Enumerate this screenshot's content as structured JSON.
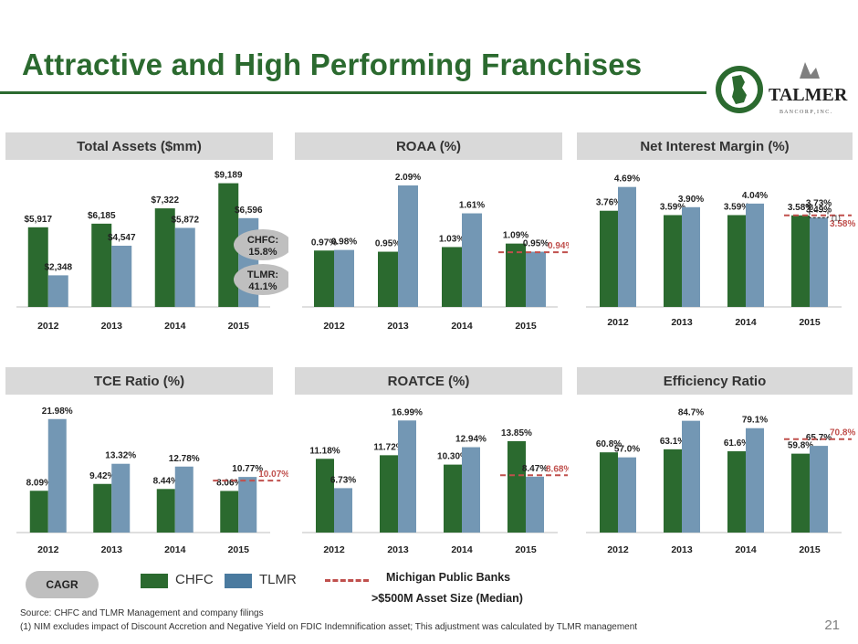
{
  "page": {
    "title": "Attractive and High Performing Franchises",
    "page_number": "21",
    "source": "Source: CHFC and TLMR Management and company filings",
    "footnote": "(1) NIM excludes impact of Discount Accretion and Negative Yield on FDIC Indemnification asset; This adjustment was calculated by TLMR management",
    "logo": {
      "name": "TALMER",
      "tagline": "B A N C O R P ,  I N C ."
    }
  },
  "colors": {
    "chfc": "#2b6a2f",
    "tlmr": "#7397b4",
    "median": "#c0504d",
    "header_bg": "#d9d9d9",
    "title": "#2b6a2f"
  },
  "legend": {
    "cagr": "CAGR",
    "chfc": "CHFC",
    "tlmr": "TLMR",
    "median_line1": "Michigan Public Banks",
    "median_line2": ">$500M Asset Size (Median)"
  },
  "chart_data": [
    {
      "type": "bar",
      "title": "Total Assets ($mm)",
      "categories": [
        "2012",
        "2013",
        "2014",
        "2015"
      ],
      "series": [
        {
          "name": "CHFC",
          "values": [
            5917,
            6185,
            7322,
            9189
          ],
          "labels": [
            "$5,917",
            "$6,185",
            "$7,322",
            "$9,189"
          ]
        },
        {
          "name": "TLMR",
          "values": [
            2348,
            4547,
            5872,
            6596
          ],
          "labels": [
            "$2,348",
            "$4,547",
            "$5,872",
            "$6,596"
          ]
        }
      ],
      "ylim": [
        0,
        9500
      ],
      "cagr_bubbles": [
        "CHFC:\n15.8%",
        "TLMR:\n41.1%"
      ]
    },
    {
      "type": "bar",
      "title": "ROAA (%)",
      "categories": [
        "2012",
        "2013",
        "2014",
        "2015"
      ],
      "series": [
        {
          "name": "CHFC",
          "values": [
            0.97,
            0.95,
            1.03,
            1.09
          ],
          "labels": [
            "0.97%",
            "0.95%",
            "1.03%",
            "1.09%"
          ]
        },
        {
          "name": "TLMR",
          "values": [
            0.98,
            2.09,
            1.61,
            0.95
          ],
          "labels": [
            "0.98%",
            "2.09%",
            "1.61%",
            "0.95%"
          ]
        }
      ],
      "ylim": [
        0,
        2.2
      ],
      "median": {
        "value": 0.94,
        "label": "0.94%"
      }
    },
    {
      "type": "bar",
      "title": "Net Interest Margin (%)",
      "categories": [
        "2012",
        "2013",
        "2014",
        "2015"
      ],
      "series": [
        {
          "name": "CHFC",
          "values": [
            3.76,
            3.59,
            3.59,
            3.58
          ],
          "labels": [
            "3.76%",
            "3.59%",
            "3.59%",
            "3.58%"
          ]
        },
        {
          "name": "TLMR",
          "values": [
            4.69,
            3.9,
            4.04,
            3.49
          ],
          "labels": [
            "4.69%",
            "3.90%",
            "4.04%",
            "3.49%"
          ]
        }
      ],
      "ylim": [
        0,
        5.0
      ],
      "adjusted": {
        "value": 3.73,
        "label": "3.73%",
        "note": "(1)"
      },
      "median": {
        "value": 3.58,
        "label": "3.58%"
      }
    },
    {
      "type": "bar",
      "title": "TCE Ratio (%)",
      "categories": [
        "2012",
        "2013",
        "2014",
        "2015"
      ],
      "series": [
        {
          "name": "CHFC",
          "values": [
            8.09,
            9.42,
            8.44,
            8.06
          ],
          "labels": [
            "8.09%",
            "9.42%",
            "8.44%",
            "8.06%"
          ]
        },
        {
          "name": "TLMR",
          "values": [
            21.98,
            13.32,
            12.78,
            10.77
          ],
          "labels": [
            "21.98%",
            "13.32%",
            "12.78%",
            "10.77%"
          ]
        }
      ],
      "ylim": [
        0,
        23
      ],
      "median": {
        "value": 10.07,
        "label": "10.07%"
      }
    },
    {
      "type": "bar",
      "title": "ROATCE (%)",
      "categories": [
        "2012",
        "2013",
        "2014",
        "2015"
      ],
      "series": [
        {
          "name": "CHFC",
          "values": [
            11.18,
            11.72,
            10.3,
            13.85
          ],
          "labels": [
            "11.18%",
            "11.72%",
            "10.30%",
            "13.85%"
          ]
        },
        {
          "name": "TLMR",
          "values": [
            6.73,
            16.99,
            12.94,
            8.47
          ],
          "labels": [
            "6.73%",
            "16.99%",
            "12.94%",
            "8.47%"
          ]
        }
      ],
      "ylim": [
        0,
        18
      ],
      "median": {
        "value": 8.68,
        "label": "8.68%"
      }
    },
    {
      "type": "bar",
      "title": "Efficiency Ratio",
      "categories": [
        "2012",
        "2013",
        "2014",
        "2015"
      ],
      "series": [
        {
          "name": "CHFC",
          "values": [
            60.8,
            63.1,
            61.6,
            59.8
          ],
          "labels": [
            "60.8%",
            "63.1%",
            "61.6%",
            "59.8%"
          ]
        },
        {
          "name": "TLMR",
          "values": [
            57.0,
            84.7,
            79.1,
            65.7
          ],
          "labels": [
            "57.0%",
            "84.7%",
            "79.1%",
            "65.7%"
          ]
        }
      ],
      "ylim": [
        0,
        90
      ],
      "median": {
        "value": 70.8,
        "label": "70.8%"
      }
    }
  ]
}
